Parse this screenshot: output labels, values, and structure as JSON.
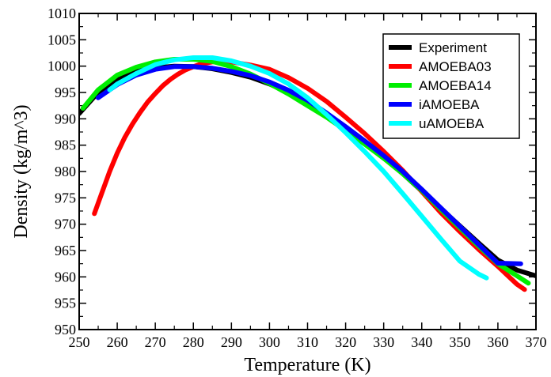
{
  "chart_data": {
    "type": "line",
    "xlabel": "Temperature (K)",
    "ylabel": "Density (kg/m^3)",
    "xlim": [
      250,
      370
    ],
    "ylim": [
      950,
      1010
    ],
    "xticks": [
      250,
      260,
      270,
      280,
      290,
      300,
      310,
      320,
      330,
      340,
      350,
      360,
      370
    ],
    "yticks": [
      950,
      955,
      960,
      965,
      970,
      975,
      980,
      985,
      990,
      995,
      1000,
      1005,
      1010
    ],
    "grid": false,
    "legend_position": "top-right",
    "series": [
      {
        "name": "Experiment",
        "color": "#000000",
        "x": [
          250,
          255,
          260,
          265,
          270,
          275,
          280,
          285,
          290,
          295,
          300,
          305,
          310,
          315,
          320,
          325,
          330,
          335,
          340,
          345,
          350,
          355,
          360,
          365,
          370
        ],
        "y": [
          991.0,
          995.0,
          997.5,
          999.0,
          999.7,
          1000.0,
          999.9,
          999.5,
          998.8,
          997.9,
          996.6,
          995.0,
          993.0,
          990.8,
          988.2,
          985.6,
          982.6,
          979.6,
          976.3,
          973.0,
          969.7,
          966.4,
          963.2,
          961.3,
          960.2
        ]
      },
      {
        "name": "AMOEBA03",
        "color": "#ff0000",
        "x": [
          254,
          256,
          258,
          260,
          262,
          264,
          266,
          268,
          270,
          272,
          274,
          276,
          278,
          280,
          282,
          285,
          290,
          295,
          300,
          305,
          310,
          315,
          320,
          325,
          330,
          335,
          340,
          345,
          350,
          355,
          360,
          365,
          367
        ],
        "y": [
          972.0,
          976.0,
          980.0,
          983.5,
          986.5,
          989.0,
          991.2,
          993.2,
          994.8,
          996.3,
          997.5,
          998.5,
          999.3,
          999.9,
          1000.4,
          1000.8,
          1000.8,
          1000.2,
          999.4,
          997.8,
          995.8,
          993.3,
          990.3,
          987.2,
          983.8,
          980.2,
          976.2,
          972.2,
          968.6,
          965.2,
          962.0,
          958.6,
          957.6
        ]
      },
      {
        "name": "AMOEBA14",
        "color": "#00ee00",
        "x": [
          251,
          255,
          260,
          265,
          270,
          275,
          280,
          285,
          290,
          295,
          300,
          305,
          310,
          315,
          320,
          325,
          330,
          335,
          340,
          345,
          350,
          355,
          360,
          365,
          368
        ],
        "y": [
          992.0,
          995.5,
          998.3,
          999.8,
          1000.8,
          1001.3,
          1001.3,
          1000.9,
          999.9,
          998.5,
          996.7,
          994.7,
          992.5,
          990.3,
          987.8,
          985.2,
          982.5,
          979.6,
          976.4,
          972.8,
          969.3,
          965.8,
          962.5,
          960.2,
          958.8
        ]
      },
      {
        "name": "iAMOEBA",
        "color": "#0000ff",
        "x": [
          255,
          260,
          265,
          270,
          275,
          280,
          285,
          290,
          295,
          300,
          305,
          310,
          315,
          320,
          325,
          330,
          335,
          340,
          345,
          350,
          355,
          360,
          366
        ],
        "y": [
          994.0,
          996.5,
          998.3,
          999.4,
          999.9,
          999.9,
          999.6,
          999.0,
          998.2,
          997.0,
          995.4,
          993.5,
          991.1,
          988.5,
          985.8,
          983.0,
          980.0,
          976.6,
          973.1,
          969.6,
          966.1,
          962.6,
          962.5
        ]
      },
      {
        "name": "uAMOEBA",
        "color": "#00ffff",
        "x": [
          258,
          260,
          265,
          270,
          275,
          280,
          285,
          290,
          295,
          300,
          305,
          310,
          315,
          320,
          325,
          330,
          335,
          340,
          345,
          350,
          355,
          357
        ],
        "y": [
          995.5,
          996.6,
          998.6,
          1000.3,
          1001.2,
          1001.6,
          1001.6,
          1001.0,
          1000.0,
          998.6,
          996.6,
          994.0,
          990.8,
          987.4,
          983.8,
          980.0,
          975.8,
          971.5,
          967.2,
          963.0,
          960.5,
          959.8
        ]
      }
    ]
  }
}
